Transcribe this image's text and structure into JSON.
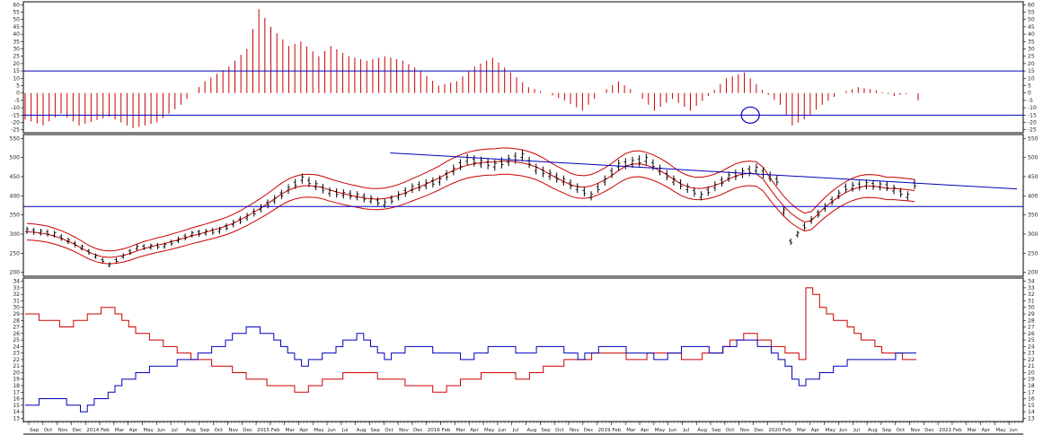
{
  "colors": {
    "background": "#ffffff",
    "frame": "#000000",
    "red": "#cc0000",
    "blue": "#0000bb",
    "price_bar": "#000000"
  },
  "chart_data": [
    {
      "panel": "oscillator",
      "type": "bar",
      "yticks": [
        -25,
        -20,
        -15,
        -10,
        -5,
        0,
        5,
        10,
        15,
        20,
        25,
        30,
        35,
        40,
        45,
        50,
        55,
        60
      ],
      "ylim": [
        -27,
        62
      ],
      "hlines": [
        15,
        -15
      ],
      "keyframes": [
        [
          0,
          -18
        ],
        [
          3,
          -22
        ],
        [
          6,
          -14
        ],
        [
          9,
          -22
        ],
        [
          14,
          -16
        ],
        [
          18,
          -24
        ],
        [
          22,
          -20
        ],
        [
          26,
          -8
        ],
        [
          30,
          8
        ],
        [
          34,
          18
        ],
        [
          37,
          30
        ],
        [
          39,
          57
        ],
        [
          41,
          45
        ],
        [
          44,
          32
        ],
        [
          46,
          35
        ],
        [
          49,
          25
        ],
        [
          51,
          32
        ],
        [
          54,
          25
        ],
        [
          57,
          22
        ],
        [
          60,
          25
        ],
        [
          63,
          22
        ],
        [
          66,
          15
        ],
        [
          69,
          5
        ],
        [
          72,
          8
        ],
        [
          75,
          18
        ],
        [
          78,
          24
        ],
        [
          81,
          14
        ],
        [
          84,
          4
        ],
        [
          87,
          0
        ],
        [
          90,
          -5
        ],
        [
          93,
          -12
        ],
        [
          96,
          0
        ],
        [
          99,
          8
        ],
        [
          102,
          0
        ],
        [
          105,
          -12
        ],
        [
          108,
          -4
        ],
        [
          111,
          -12
        ],
        [
          114,
          -2
        ],
        [
          117,
          10
        ],
        [
          120,
          14
        ],
        [
          123,
          2
        ],
        [
          126,
          -8
        ],
        [
          128,
          -22
        ],
        [
          130,
          -18
        ],
        [
          133,
          -8
        ],
        [
          136,
          0
        ],
        [
          139,
          4
        ],
        [
          142,
          2
        ],
        [
          145,
          -2
        ],
        [
          148,
          0
        ],
        [
          149,
          -5
        ]
      ],
      "count": 150,
      "marker": {
        "index": 121,
        "value": -15
      }
    },
    {
      "panel": "price",
      "type": "ohlc",
      "yticks": [
        200,
        250,
        300,
        350,
        400,
        450,
        500,
        550
      ],
      "ylim": [
        190,
        560
      ],
      "hlines": [
        372
      ],
      "trendline": [
        [
          60,
          512
        ],
        [
          148,
          418
        ]
      ],
      "keyframes": [
        [
          0,
          310
        ],
        [
          4,
          300
        ],
        [
          8,
          265
        ],
        [
          12,
          220
        ],
        [
          16,
          265
        ],
        [
          20,
          270
        ],
        [
          24,
          300
        ],
        [
          28,
          310
        ],
        [
          32,
          345
        ],
        [
          36,
          390
        ],
        [
          40,
          445
        ],
        [
          44,
          410
        ],
        [
          48,
          400
        ],
        [
          52,
          380
        ],
        [
          56,
          420
        ],
        [
          60,
          440
        ],
        [
          64,
          495
        ],
        [
          68,
          480
        ],
        [
          72,
          505
        ],
        [
          74,
          470
        ],
        [
          78,
          440
        ],
        [
          82,
          400
        ],
        [
          86,
          480
        ],
        [
          90,
          495
        ],
        [
          94,
          440
        ],
        [
          98,
          400
        ],
        [
          102,
          450
        ],
        [
          106,
          470
        ],
        [
          109,
          440
        ],
        [
          111,
          280
        ],
        [
          113,
          320
        ],
        [
          116,
          370
        ],
        [
          119,
          420
        ],
        [
          122,
          430
        ],
        [
          125,
          425
        ],
        [
          128,
          400
        ],
        [
          129,
          430
        ]
      ],
      "count": 130
    },
    {
      "panel": "directional",
      "type": "line",
      "yticks": [
        13,
        14,
        15,
        16,
        17,
        18,
        19,
        20,
        21,
        22,
        23,
        24,
        25,
        26,
        27,
        28,
        29,
        30,
        31,
        32,
        33,
        34
      ],
      "ylim": [
        12.5,
        34.5
      ],
      "series": [
        {
          "color": "red",
          "keyframes": [
            [
              0,
              29
            ],
            [
              6,
              27
            ],
            [
              12,
              30
            ],
            [
              16,
              26
            ],
            [
              20,
              24
            ],
            [
              24,
              22
            ],
            [
              28,
              21
            ],
            [
              32,
              19
            ],
            [
              36,
              18
            ],
            [
              40,
              17
            ],
            [
              44,
              19
            ],
            [
              48,
              20
            ],
            [
              52,
              19
            ],
            [
              56,
              18
            ],
            [
              60,
              17
            ],
            [
              64,
              19
            ],
            [
              68,
              20
            ],
            [
              72,
              19
            ],
            [
              76,
              21
            ],
            [
              80,
              22
            ],
            [
              84,
              23
            ],
            [
              88,
              22
            ],
            [
              92,
              23
            ],
            [
              96,
              22
            ],
            [
              100,
              23
            ],
            [
              104,
              26
            ],
            [
              108,
              24
            ],
            [
              112,
              22
            ],
            [
              113,
              33
            ],
            [
              116,
              29
            ],
            [
              120,
              26
            ],
            [
              124,
              23
            ],
            [
              128,
              22
            ],
            [
              129,
              22
            ]
          ]
        },
        {
          "color": "blue",
          "keyframes": [
            [
              0,
              15
            ],
            [
              4,
              16
            ],
            [
              8,
              14
            ],
            [
              12,
              17
            ],
            [
              16,
              20
            ],
            [
              20,
              21
            ],
            [
              24,
              22
            ],
            [
              28,
              24
            ],
            [
              32,
              27
            ],
            [
              36,
              25
            ],
            [
              40,
              21
            ],
            [
              44,
              23
            ],
            [
              48,
              26
            ],
            [
              52,
              22
            ],
            [
              56,
              24
            ],
            [
              60,
              23
            ],
            [
              64,
              22
            ],
            [
              68,
              24
            ],
            [
              72,
              23
            ],
            [
              76,
              24
            ],
            [
              80,
              22
            ],
            [
              84,
              24
            ],
            [
              88,
              23
            ],
            [
              92,
              22
            ],
            [
              96,
              24
            ],
            [
              100,
              23
            ],
            [
              104,
              25
            ],
            [
              108,
              23
            ],
            [
              112,
              18
            ],
            [
              116,
              20
            ],
            [
              120,
              22
            ],
            [
              124,
              22
            ],
            [
              128,
              23
            ],
            [
              129,
              23
            ]
          ]
        }
      ]
    }
  ],
  "time_axis": {
    "labels": [
      "Sep",
      "Oct",
      "Nov",
      "Dec",
      "2014",
      "Feb",
      "Mar",
      "Apr",
      "May",
      "Jun",
      "Jul",
      "Aug",
      "Sep",
      "Oct",
      "Nov",
      "Dec",
      "2015",
      "Feb",
      "Mar",
      "Apr",
      "May",
      "Jun",
      "Jul",
      "Aug",
      "Sep",
      "Oct",
      "Nov",
      "Dec",
      "2016",
      "Feb",
      "Mar",
      "Apr",
      "May",
      "Jun",
      "Jul",
      "Aug",
      "Sep",
      "Oct",
      "Nov",
      "Dec",
      "2019",
      "Feb",
      "Mar",
      "Apr",
      "May",
      "Jun",
      "Jul",
      "Aug",
      "Sep",
      "Oct",
      "Nov",
      "Dec",
      "2020",
      "Feb",
      "Mar",
      "Apr",
      "May",
      "Jun",
      "Jul",
      "Aug",
      "Sep",
      "Oct",
      "Nov",
      "Dec",
      "2021",
      "Feb",
      "Mar",
      "Apr",
      "May",
      "Jun"
    ]
  }
}
